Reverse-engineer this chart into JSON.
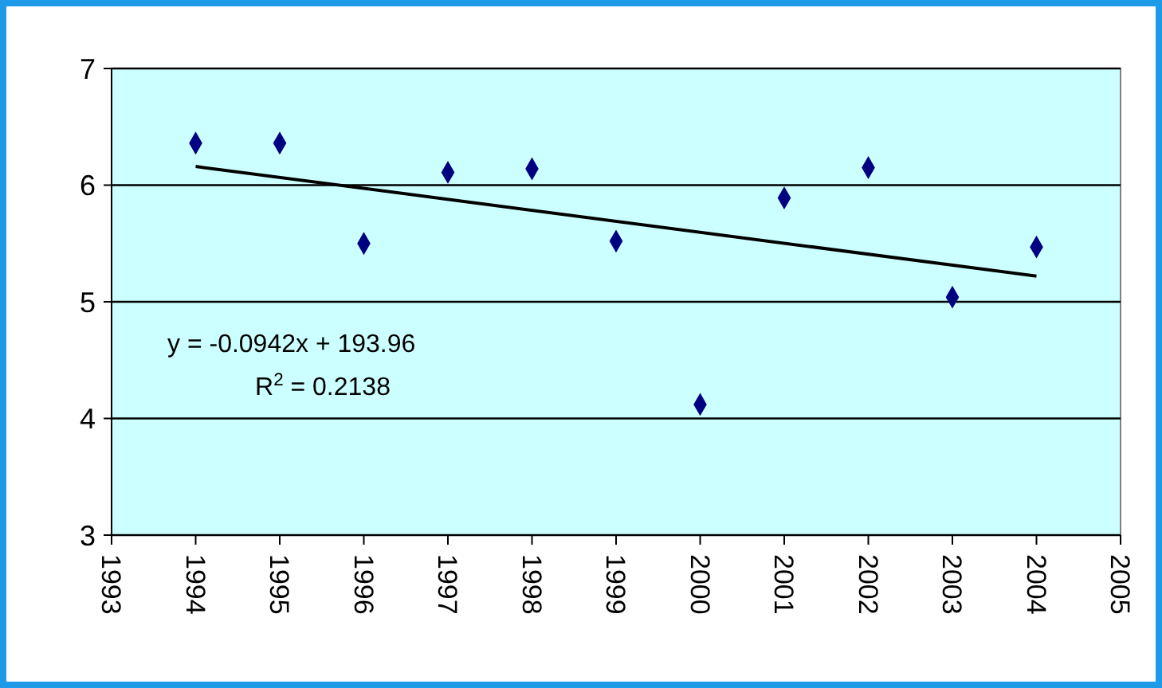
{
  "chart_data": {
    "type": "scatter",
    "xlim": [
      1993,
      2005
    ],
    "xticks": [
      1993,
      1994,
      1995,
      1996,
      1997,
      1998,
      1999,
      2000,
      2001,
      2002,
      2003,
      2004,
      2005
    ],
    "ylim": [
      3,
      7
    ],
    "yticks": [
      3,
      4,
      5,
      6,
      7
    ],
    "grid": "y",
    "marker": "diamond",
    "annotations": [
      "y = -0.0942x + 193.96",
      "R$^{2}$ = 0.2138"
    ],
    "series": [
      {
        "color": "#000080",
        "x": [
          1994,
          1995,
          1996,
          1997,
          1998,
          1999,
          2000,
          2001,
          2002,
          2003,
          2004
        ],
        "values": [
          6.36,
          6.36,
          5.5,
          6.11,
          6.14,
          5.52,
          4.12,
          5.89,
          6.15,
          5.04,
          5.47
        ]
      },
      {
        "type": "line",
        "color": "#000000",
        "marker": "none",
        "line_style": "solid",
        "x": [
          1994,
          2004
        ],
        "values": [
          6.16,
          5.22
        ]
      }
    ]
  }
}
